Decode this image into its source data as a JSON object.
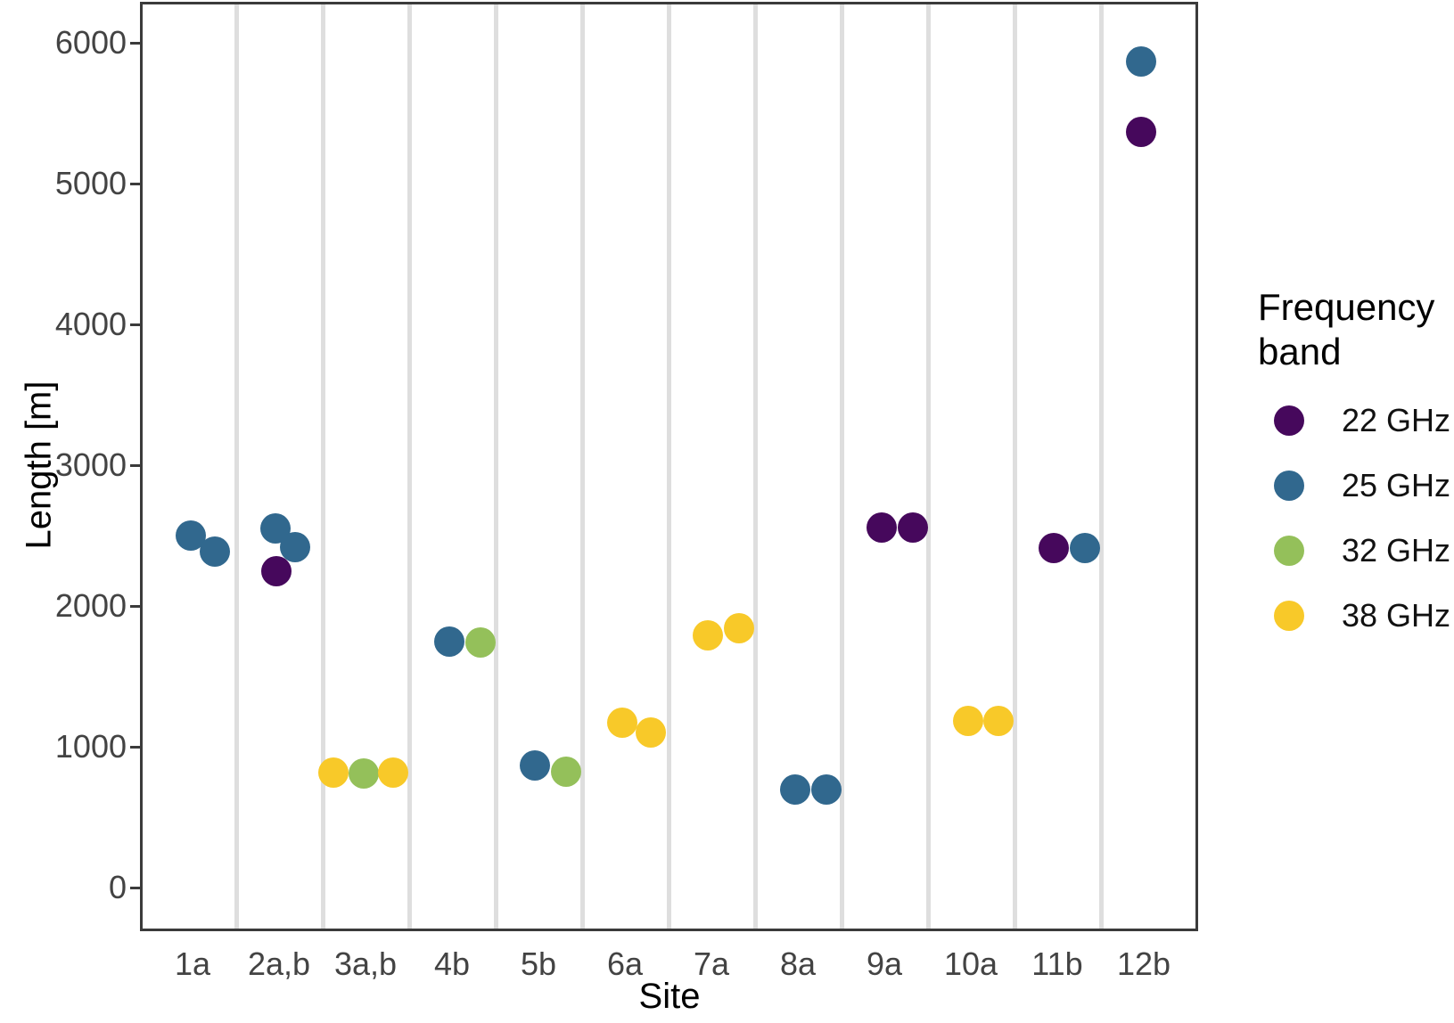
{
  "figure": {
    "y_axis": {
      "title": "Length [m]",
      "ticks": [
        {
          "label": "0",
          "value": 0
        },
        {
          "label": "1000",
          "value": 1000
        },
        {
          "label": "2000",
          "value": 2000
        },
        {
          "label": "3000",
          "value": 3000
        },
        {
          "label": "4000",
          "value": 4000
        },
        {
          "label": "5000",
          "value": 5000
        },
        {
          "label": "6000",
          "value": 6000
        }
      ]
    },
    "x_axis": {
      "title": "Site",
      "categories": [
        "1a",
        "2a,b",
        "3a,b",
        "4b",
        "5b",
        "6a",
        "7a",
        "8a",
        "9a",
        "10a",
        "11b",
        "12b"
      ]
    },
    "legend": {
      "title": "Frequency band",
      "items": [
        {
          "label": "22 GHz",
          "color": "#46085C"
        },
        {
          "label": "25 GHz",
          "color": "#31688E"
        },
        {
          "label": "32 GHz",
          "color": "#94C05A"
        },
        {
          "label": "38 GHz",
          "color": "#F8C929"
        }
      ]
    }
  },
  "chart_data": {
    "type": "scatter",
    "title": "",
    "xlabel": "Site",
    "ylabel": "Length [m]",
    "ylim": [
      0,
      6000
    ],
    "grid": "vertical-only",
    "legend_position": "right",
    "categories": [
      "1a",
      "2a,b",
      "3a,b",
      "4b",
      "5b",
      "6a",
      "7a",
      "8a",
      "9a",
      "10a",
      "11b",
      "12b"
    ],
    "series": [
      {
        "name": "22 GHz",
        "color": "#46085C",
        "points": [
          {
            "site": "2a,b",
            "length": 2225,
            "dx": 0
          },
          {
            "site": "9a",
            "length": 2540,
            "dx": 0
          },
          {
            "site": "9a",
            "length": 2540,
            "dx": 35
          },
          {
            "site": "11b",
            "length": 2395,
            "dx": -1
          },
          {
            "site": "12b",
            "length": 5350,
            "dx": 0
          }
        ]
      },
      {
        "name": "25 GHz",
        "color": "#31688E",
        "points": [
          {
            "site": "1a",
            "length": 2480,
            "dx": 1
          },
          {
            "site": "1a",
            "length": 2370,
            "dx": 28
          },
          {
            "site": "2a,b",
            "length": 2530,
            "dx": -1
          },
          {
            "site": "2a,b",
            "length": 2400,
            "dx": 21
          },
          {
            "site": "4b",
            "length": 1730,
            "dx": 0
          },
          {
            "site": "5b",
            "length": 845,
            "dx": -1
          },
          {
            "site": "8a",
            "length": 675,
            "dx": 0
          },
          {
            "site": "8a",
            "length": 675,
            "dx": 35
          },
          {
            "site": "11b",
            "length": 2395,
            "dx": 34
          },
          {
            "site": "12b",
            "length": 5845,
            "dx": 0
          }
        ]
      },
      {
        "name": "32 GHz",
        "color": "#94C05A",
        "points": [
          {
            "site": "3a,b",
            "length": 790,
            "dx": 1
          },
          {
            "site": "4b",
            "length": 1720,
            "dx": 35
          },
          {
            "site": "5b",
            "length": 805,
            "dx": 34
          }
        ]
      },
      {
        "name": "38 GHz",
        "color": "#F8C929",
        "points": [
          {
            "site": "3a,b",
            "length": 800,
            "dx": -33
          },
          {
            "site": "3a,b",
            "length": 800,
            "dx": 34
          },
          {
            "site": "6a",
            "length": 1150,
            "dx": 0
          },
          {
            "site": "6a",
            "length": 1085,
            "dx": 32
          },
          {
            "site": "7a",
            "length": 1775,
            "dx": -1
          },
          {
            "site": "7a",
            "length": 1820,
            "dx": 34
          },
          {
            "site": "10a",
            "length": 1165,
            "dx": 0
          },
          {
            "site": "10a",
            "length": 1165,
            "dx": 34
          }
        ]
      }
    ]
  }
}
